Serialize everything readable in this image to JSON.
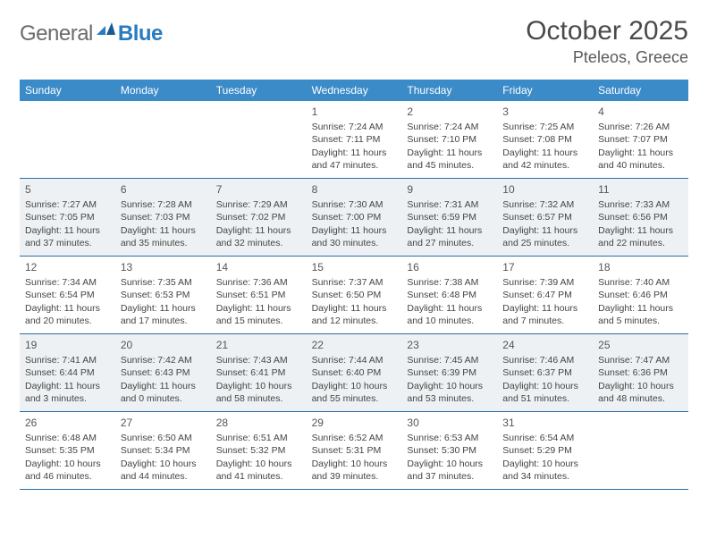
{
  "logo": {
    "word1": "General",
    "word2": "Blue"
  },
  "title": "October 2025",
  "location": "Pteleos, Greece",
  "colors": {
    "header_bg": "#3b8bc9",
    "header_text": "#ffffff",
    "divider": "#2a6fa8",
    "shade_bg": "#eef1f3",
    "text": "#444444",
    "logo_gray": "#6b6b6b",
    "logo_blue": "#2a7bbf"
  },
  "day_names": [
    "Sunday",
    "Monday",
    "Tuesday",
    "Wednesday",
    "Thursday",
    "Friday",
    "Saturday"
  ],
  "weeks": [
    {
      "shaded": false,
      "cells": [
        {
          "day": "",
          "lines": []
        },
        {
          "day": "",
          "lines": []
        },
        {
          "day": "",
          "lines": []
        },
        {
          "day": "1",
          "lines": [
            "Sunrise: 7:24 AM",
            "Sunset: 7:11 PM",
            "Daylight: 11 hours",
            "and 47 minutes."
          ]
        },
        {
          "day": "2",
          "lines": [
            "Sunrise: 7:24 AM",
            "Sunset: 7:10 PM",
            "Daylight: 11 hours",
            "and 45 minutes."
          ]
        },
        {
          "day": "3",
          "lines": [
            "Sunrise: 7:25 AM",
            "Sunset: 7:08 PM",
            "Daylight: 11 hours",
            "and 42 minutes."
          ]
        },
        {
          "day": "4",
          "lines": [
            "Sunrise: 7:26 AM",
            "Sunset: 7:07 PM",
            "Daylight: 11 hours",
            "and 40 minutes."
          ]
        }
      ]
    },
    {
      "shaded": true,
      "cells": [
        {
          "day": "5",
          "lines": [
            "Sunrise: 7:27 AM",
            "Sunset: 7:05 PM",
            "Daylight: 11 hours",
            "and 37 minutes."
          ]
        },
        {
          "day": "6",
          "lines": [
            "Sunrise: 7:28 AM",
            "Sunset: 7:03 PM",
            "Daylight: 11 hours",
            "and 35 minutes."
          ]
        },
        {
          "day": "7",
          "lines": [
            "Sunrise: 7:29 AM",
            "Sunset: 7:02 PM",
            "Daylight: 11 hours",
            "and 32 minutes."
          ]
        },
        {
          "day": "8",
          "lines": [
            "Sunrise: 7:30 AM",
            "Sunset: 7:00 PM",
            "Daylight: 11 hours",
            "and 30 minutes."
          ]
        },
        {
          "day": "9",
          "lines": [
            "Sunrise: 7:31 AM",
            "Sunset: 6:59 PM",
            "Daylight: 11 hours",
            "and 27 minutes."
          ]
        },
        {
          "day": "10",
          "lines": [
            "Sunrise: 7:32 AM",
            "Sunset: 6:57 PM",
            "Daylight: 11 hours",
            "and 25 minutes."
          ]
        },
        {
          "day": "11",
          "lines": [
            "Sunrise: 7:33 AM",
            "Sunset: 6:56 PM",
            "Daylight: 11 hours",
            "and 22 minutes."
          ]
        }
      ]
    },
    {
      "shaded": false,
      "cells": [
        {
          "day": "12",
          "lines": [
            "Sunrise: 7:34 AM",
            "Sunset: 6:54 PM",
            "Daylight: 11 hours",
            "and 20 minutes."
          ]
        },
        {
          "day": "13",
          "lines": [
            "Sunrise: 7:35 AM",
            "Sunset: 6:53 PM",
            "Daylight: 11 hours",
            "and 17 minutes."
          ]
        },
        {
          "day": "14",
          "lines": [
            "Sunrise: 7:36 AM",
            "Sunset: 6:51 PM",
            "Daylight: 11 hours",
            "and 15 minutes."
          ]
        },
        {
          "day": "15",
          "lines": [
            "Sunrise: 7:37 AM",
            "Sunset: 6:50 PM",
            "Daylight: 11 hours",
            "and 12 minutes."
          ]
        },
        {
          "day": "16",
          "lines": [
            "Sunrise: 7:38 AM",
            "Sunset: 6:48 PM",
            "Daylight: 11 hours",
            "and 10 minutes."
          ]
        },
        {
          "day": "17",
          "lines": [
            "Sunrise: 7:39 AM",
            "Sunset: 6:47 PM",
            "Daylight: 11 hours",
            "and 7 minutes."
          ]
        },
        {
          "day": "18",
          "lines": [
            "Sunrise: 7:40 AM",
            "Sunset: 6:46 PM",
            "Daylight: 11 hours",
            "and 5 minutes."
          ]
        }
      ]
    },
    {
      "shaded": true,
      "cells": [
        {
          "day": "19",
          "lines": [
            "Sunrise: 7:41 AM",
            "Sunset: 6:44 PM",
            "Daylight: 11 hours",
            "and 3 minutes."
          ]
        },
        {
          "day": "20",
          "lines": [
            "Sunrise: 7:42 AM",
            "Sunset: 6:43 PM",
            "Daylight: 11 hours",
            "and 0 minutes."
          ]
        },
        {
          "day": "21",
          "lines": [
            "Sunrise: 7:43 AM",
            "Sunset: 6:41 PM",
            "Daylight: 10 hours",
            "and 58 minutes."
          ]
        },
        {
          "day": "22",
          "lines": [
            "Sunrise: 7:44 AM",
            "Sunset: 6:40 PM",
            "Daylight: 10 hours",
            "and 55 minutes."
          ]
        },
        {
          "day": "23",
          "lines": [
            "Sunrise: 7:45 AM",
            "Sunset: 6:39 PM",
            "Daylight: 10 hours",
            "and 53 minutes."
          ]
        },
        {
          "day": "24",
          "lines": [
            "Sunrise: 7:46 AM",
            "Sunset: 6:37 PM",
            "Daylight: 10 hours",
            "and 51 minutes."
          ]
        },
        {
          "day": "25",
          "lines": [
            "Sunrise: 7:47 AM",
            "Sunset: 6:36 PM",
            "Daylight: 10 hours",
            "and 48 minutes."
          ]
        }
      ]
    },
    {
      "shaded": false,
      "cells": [
        {
          "day": "26",
          "lines": [
            "Sunrise: 6:48 AM",
            "Sunset: 5:35 PM",
            "Daylight: 10 hours",
            "and 46 minutes."
          ]
        },
        {
          "day": "27",
          "lines": [
            "Sunrise: 6:50 AM",
            "Sunset: 5:34 PM",
            "Daylight: 10 hours",
            "and 44 minutes."
          ]
        },
        {
          "day": "28",
          "lines": [
            "Sunrise: 6:51 AM",
            "Sunset: 5:32 PM",
            "Daylight: 10 hours",
            "and 41 minutes."
          ]
        },
        {
          "day": "29",
          "lines": [
            "Sunrise: 6:52 AM",
            "Sunset: 5:31 PM",
            "Daylight: 10 hours",
            "and 39 minutes."
          ]
        },
        {
          "day": "30",
          "lines": [
            "Sunrise: 6:53 AM",
            "Sunset: 5:30 PM",
            "Daylight: 10 hours",
            "and 37 minutes."
          ]
        },
        {
          "day": "31",
          "lines": [
            "Sunrise: 6:54 AM",
            "Sunset: 5:29 PM",
            "Daylight: 10 hours",
            "and 34 minutes."
          ]
        },
        {
          "day": "",
          "lines": []
        }
      ]
    }
  ]
}
